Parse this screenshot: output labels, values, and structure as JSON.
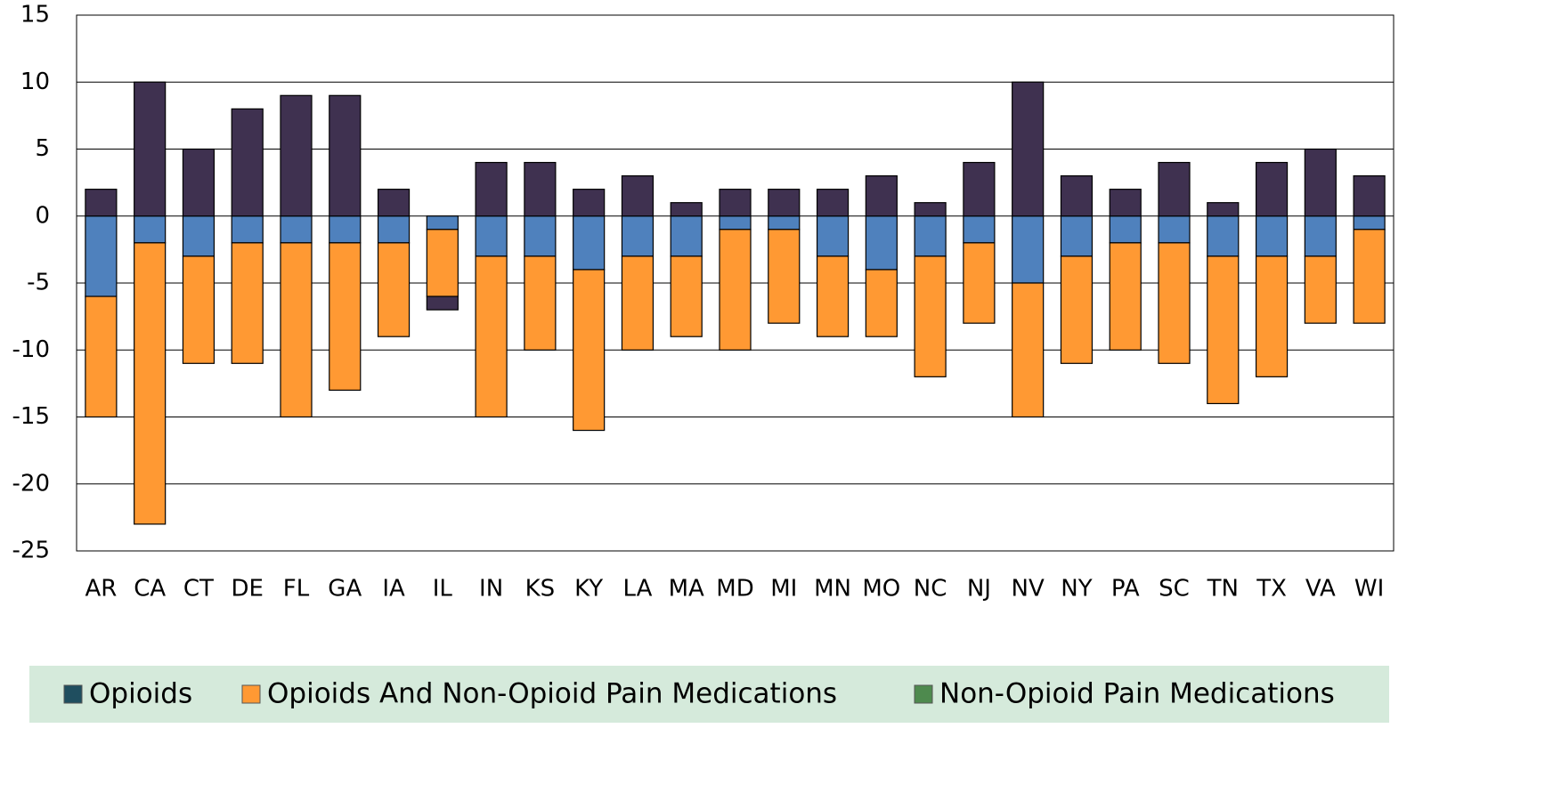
{
  "chart_data": {
    "type": "stacked_bar",
    "categories": [
      "AR",
      "CA",
      "CT",
      "DE",
      "FL",
      "GA",
      "IA",
      "IL",
      "IN",
      "KS",
      "KY",
      "LA",
      "MA",
      "MD",
      "MI",
      "MN",
      "MO",
      "NC",
      "NJ",
      "NV",
      "NY",
      "PA",
      "SC",
      "TN",
      "TX",
      "VA",
      "WI"
    ],
    "series": [
      {
        "name": "Opioids",
        "color": "#3f3150",
        "legend_color": "#1f4e5f",
        "values": [
          2,
          10,
          5,
          8,
          9,
          9,
          2,
          -1,
          4,
          4,
          2,
          3,
          1,
          2,
          2,
          2,
          3,
          1,
          4,
          10,
          3,
          2,
          4,
          1,
          4,
          5,
          3
        ]
      },
      {
        "name": "Opioids And Non-Opioid Pain Medications",
        "color": "#ff9933",
        "legend_color": "#ff9933",
        "values": [
          -9,
          -21,
          -8,
          -9,
          -13,
          -11,
          -7,
          -5,
          -12,
          -7,
          -12,
          -7,
          -6,
          -9,
          -7,
          -6,
          -5,
          -9,
          -6,
          -10,
          -8,
          -8,
          -9,
          -11,
          -9,
          -5,
          -7
        ]
      },
      {
        "name": "Non-Opioid Pain Medications",
        "color": "#4f81bd",
        "legend_color": "#4e8a4e",
        "values": [
          -6,
          -2,
          -3,
          -2,
          -2,
          -2,
          -2,
          -1,
          -3,
          -3,
          -4,
          -3,
          -3,
          -1,
          -1,
          -3,
          -4,
          -3,
          -2,
          -5,
          -3,
          -2,
          -2,
          -3,
          -3,
          -3,
          -1
        ]
      }
    ],
    "ylim": [
      -25,
      15
    ],
    "yticks": [
      -25,
      -20,
      -15,
      -10,
      -5,
      0,
      5,
      10,
      15
    ],
    "grid": true,
    "legend": "bottom"
  }
}
